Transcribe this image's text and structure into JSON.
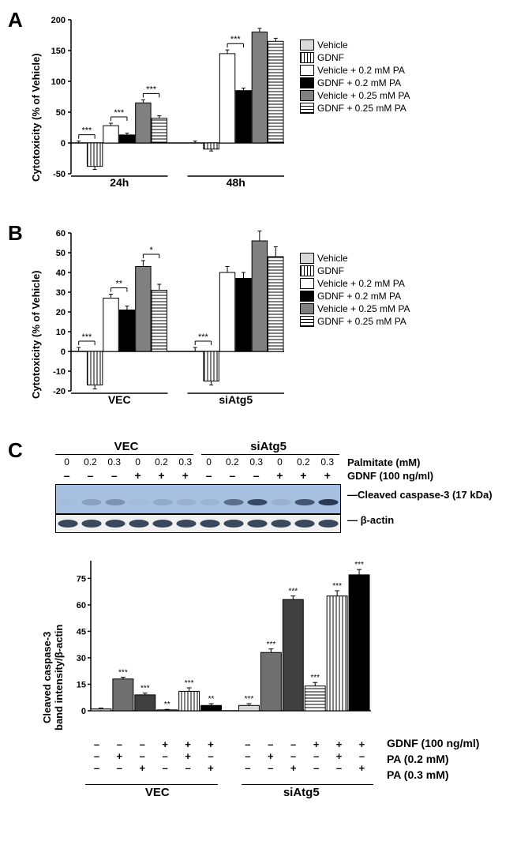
{
  "panelA": {
    "label": "A",
    "ylabel": "Cytotoxicity (% of Vehicle)",
    "ylim": [
      -50,
      200
    ],
    "ytick_step": 50,
    "groups": [
      "24h",
      "48h"
    ],
    "series_labels": [
      "Vehicle",
      "GDNF",
      "Vehicle + 0.2 mM PA",
      "GDNF + 0.2 mM PA",
      "Vehicle + 0.25 mM PA",
      "GDNF + 0.25 mM PA"
    ],
    "colors": [
      "#d9d9d9",
      "hatch-v",
      "#ffffff",
      "#000000",
      "#808080",
      "hatch-h"
    ],
    "values": [
      [
        0,
        -38,
        28,
        13,
        65,
        40
      ],
      [
        0,
        -10,
        145,
        85,
        180,
        165
      ]
    ],
    "errors": [
      [
        3,
        5,
        4,
        3,
        5,
        4
      ],
      [
        3,
        3,
        6,
        4,
        6,
        5
      ]
    ],
    "sig": [
      {
        "group": 0,
        "from": 0,
        "to": 1,
        "label": "***"
      },
      {
        "group": 0,
        "from": 2,
        "to": 3,
        "label": "***"
      },
      {
        "group": 0,
        "from": 4,
        "to": 5,
        "label": "***"
      },
      {
        "group": 1,
        "from": 2,
        "to": 3,
        "label": "***"
      }
    ]
  },
  "panelB": {
    "label": "B",
    "ylabel": "Cytotoxicity (% of Vehicle)",
    "ylim": [
      -20,
      60
    ],
    "ytick_step": 10,
    "groups": [
      "VEC",
      "siAtg5"
    ],
    "series_labels": [
      "Vehicle",
      "GDNF",
      "Vehicle + 0.2 mM PA",
      "GDNF + 0.2 mM PA",
      "Vehicle + 0.25 mM PA",
      "GDNF + 0.25 mM PA"
    ],
    "colors": [
      "#d9d9d9",
      "hatch-v",
      "#ffffff",
      "#000000",
      "#808080",
      "hatch-h"
    ],
    "values": [
      [
        0,
        -17,
        27,
        21,
        43,
        31
      ],
      [
        0,
        -15,
        40,
        37,
        56,
        48
      ]
    ],
    "errors": [
      [
        2,
        2,
        2,
        2,
        3,
        3
      ],
      [
        2,
        2,
        3,
        3,
        5,
        5
      ]
    ],
    "sig": [
      {
        "group": 0,
        "from": 0,
        "to": 1,
        "label": "***"
      },
      {
        "group": 0,
        "from": 2,
        "to": 3,
        "label": "**"
      },
      {
        "group": 0,
        "from": 4,
        "to": 5,
        "label": "*"
      },
      {
        "group": 1,
        "from": 0,
        "to": 1,
        "label": "***"
      }
    ]
  },
  "panelC": {
    "label": "C",
    "groups": [
      "VEC",
      "siAtg5"
    ],
    "palmitate_header": [
      "0",
      "0.2",
      "0.3",
      "0",
      "0.2",
      "0.3",
      "0",
      "0.2",
      "0.3",
      "0",
      "0.2",
      "0.3"
    ],
    "gdnf_header": [
      "–",
      "–",
      "–",
      "+",
      "+",
      "+",
      "–",
      "–",
      "–",
      "+",
      "+",
      "+"
    ],
    "palmitate_label": "Palmitate (mM)",
    "gdnf_label": "GDNF (100 ng/ml)",
    "band_labels": [
      "Cleaved caspase-3 (17 kDa)",
      "β-actin"
    ],
    "blot": {
      "caspase_bg": "#a8c0e0",
      "caspase_intensities": [
        2,
        20,
        30,
        3,
        15,
        10,
        8,
        55,
        80,
        10,
        70,
        90
      ],
      "actin_intensities": [
        85,
        85,
        85,
        85,
        85,
        85,
        85,
        85,
        85,
        85,
        85,
        85
      ]
    },
    "chart": {
      "ylabel": "Cleaved caspase-3\nband intensity/β-actin",
      "ylim": [
        0,
        85
      ],
      "ytick_step": 15,
      "colors": [
        "#d9d9d9",
        "#707070",
        "#404040",
        "#ffffff",
        "hatch-v",
        "#000000",
        "#d9d9d9",
        "#707070",
        "#404040",
        "hatch-h",
        "hatch-v",
        "#000000"
      ],
      "values": [
        1,
        18,
        9,
        0.5,
        11,
        3,
        3,
        33,
        63,
        14,
        65,
        77
      ],
      "errors": [
        0.5,
        1,
        1,
        0.3,
        2,
        1,
        1,
        2,
        2,
        2,
        3,
        3
      ],
      "sig": [
        "",
        "***",
        "***",
        "**",
        "***",
        "**",
        "***",
        "***",
        "***",
        "***",
        "***",
        "***"
      ]
    },
    "cond_rows": {
      "gdnf": {
        "label": "GDNF (100 ng/ml)",
        "vals": [
          "–",
          "–",
          "–",
          "+",
          "+",
          "+",
          "–",
          "–",
          "–",
          "+",
          "+",
          "+"
        ]
      },
      "pa02": {
        "label": "PA (0.2 mM)",
        "vals": [
          "–",
          "+",
          "–",
          "–",
          "+",
          "–",
          "–",
          "+",
          "–",
          "–",
          "+",
          "–"
        ]
      },
      "pa03": {
        "label": "PA (0.3 mM)",
        "vals": [
          "–",
          "–",
          "+",
          "–",
          "–",
          "+",
          "–",
          "–",
          "+",
          "–",
          "–",
          "+"
        ]
      }
    }
  }
}
